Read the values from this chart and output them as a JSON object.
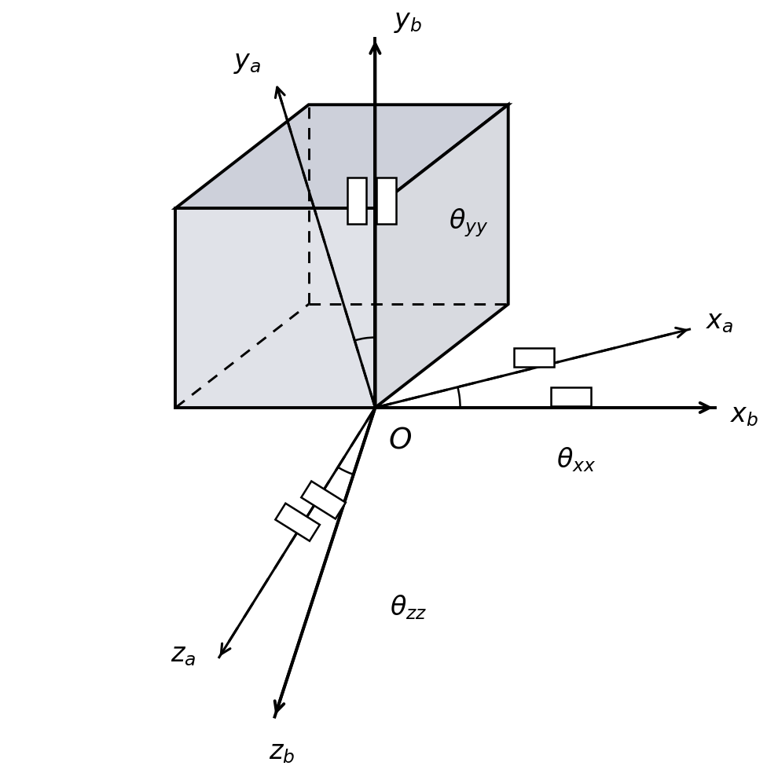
{
  "background_color": "#ffffff",
  "cube_face_color": "#d0d0d8",
  "cube_edge_color": "#000000",
  "cube_edge_lw": 2.8,
  "arrow_lw": 2.5,
  "labels": {
    "ya_text": "$y_a$",
    "yb_text": "$y_b$",
    "xa_text": "$x_a$",
    "xb_text": "$x_b$",
    "za_text": "$z_a$",
    "zb_text": "$z_b$",
    "O_text": "$O$",
    "theta_xx": "$\\theta_{xx}$",
    "theta_yy": "$\\theta_{yy}$",
    "theta_zz": "$\\theta_{zz}$"
  },
  "font_size": 24
}
